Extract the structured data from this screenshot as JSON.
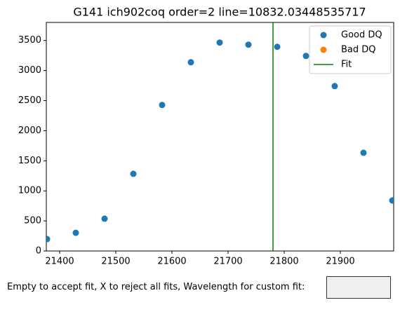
{
  "chart_data": {
    "type": "scatter",
    "title": "G141 ich902coq order=2 line=10832.03448535717",
    "series": [
      {
        "name": "Good DQ",
        "color": "#1f77b4",
        "x": [
          21377.5,
          21428.75,
          21480,
          21531.25,
          21582.5,
          21633.75,
          21685,
          21736.25,
          21787.5,
          21838.75,
          21890,
          21941.25,
          21992.5
        ],
        "values": [
          198,
          303,
          537,
          1283,
          2427,
          3138,
          3465,
          3430,
          3395,
          3243,
          2742,
          1633,
          840
        ]
      },
      {
        "name": "Bad DQ",
        "color": "#ff7f0e",
        "x": [],
        "values": []
      }
    ],
    "vlines": [
      {
        "name": "Fit",
        "color": "#008000",
        "x": 21780
      }
    ],
    "xlim": [
      21376.25,
      21995
    ],
    "xticks": [
      21400,
      21500,
      21600,
      21700,
      21800,
      21900
    ],
    "ylim": [
      0,
      3800
    ],
    "yticks": [
      0,
      500,
      1000,
      1500,
      2000,
      2500,
      3000,
      3500
    ],
    "legend": "upper right"
  },
  "input": {
    "label": "Empty to accept fit, X to reject all fits, Wavelength for custom fit:"
  }
}
